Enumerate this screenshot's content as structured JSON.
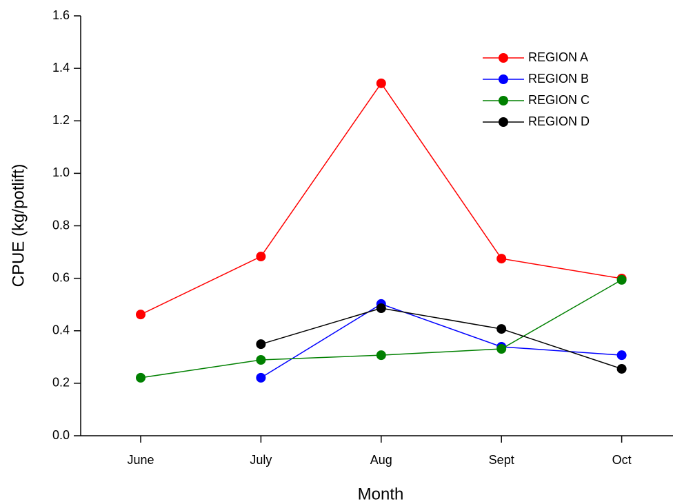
{
  "chart_data": {
    "type": "line",
    "y_label": "CPUE (kg/potlift)",
    "x_label": "Month",
    "categories": [
      "June",
      "July",
      "Aug",
      "Sept",
      "Oct"
    ],
    "series": [
      {
        "name": "REGION A",
        "color": "#ff0000",
        "values": [
          0.462,
          0.683,
          1.343,
          0.675,
          0.599
        ]
      },
      {
        "name": "REGION B",
        "color": "#0000ff",
        "values": [
          null,
          0.221,
          0.502,
          0.339,
          0.307
        ]
      },
      {
        "name": "REGION C",
        "color": "#008000",
        "values": [
          0.221,
          0.289,
          0.307,
          0.331,
          0.594
        ]
      },
      {
        "name": "REGION D",
        "color": "#000000",
        "values": [
          null,
          0.349,
          0.486,
          0.407,
          0.255
        ]
      }
    ],
    "ylim": [
      0,
      1.6
    ],
    "yticks": [
      {
        "value": 0,
        "label": "0.0"
      },
      0.2,
      0.4,
      0.6,
      0.8,
      {
        "value": 1,
        "label": "1.0"
      },
      1.2,
      1.4,
      1.6
    ],
    "legend": "upper right",
    "grid": false
  }
}
